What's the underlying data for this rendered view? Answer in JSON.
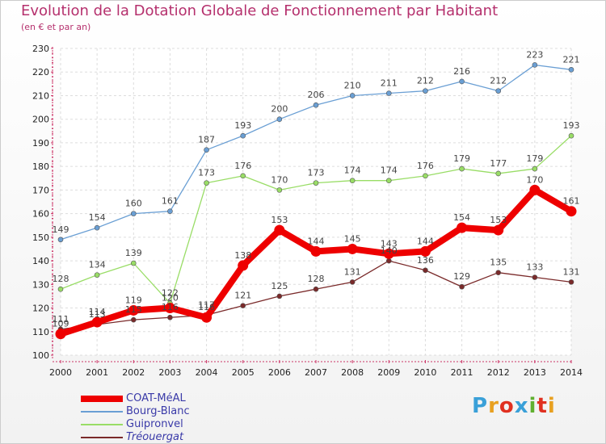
{
  "header": {
    "title": "Evolution de la Dotation Globale de Fonctionnement par Habitant",
    "subtitle": "(en € et par an)"
  },
  "logo": {
    "text": "Proxiti",
    "colors": [
      "#3aa0d8",
      "#e8a020",
      "#e03020",
      "#3aa0d8",
      "#60b030",
      "#e03020",
      "#e8a020"
    ]
  },
  "chart_data": {
    "type": "line",
    "x": [
      "2000",
      "2001",
      "2002",
      "2003",
      "2004",
      "2005",
      "2006",
      "2007",
      "2008",
      "2009",
      "2010",
      "2011",
      "2012",
      "2013",
      "2014"
    ],
    "ylim": [
      100,
      230
    ],
    "yticks": [
      100,
      110,
      120,
      130,
      140,
      150,
      160,
      170,
      180,
      190,
      200,
      210,
      220,
      230
    ],
    "grid": true,
    "legend_position": "bottom-left",
    "series": [
      {
        "name": "COAT-MéAL",
        "color": "#ee0000",
        "values": [
          109,
          114,
          119,
          120,
          116,
          138,
          153,
          144,
          145,
          143,
          144,
          154,
          153,
          170,
          161
        ]
      },
      {
        "name": "Bourg-Blanc",
        "color": "#6a9fd4",
        "values": [
          149,
          154,
          160,
          161,
          187,
          193,
          200,
          206,
          210,
          211,
          212,
          216,
          212,
          223,
          221
        ]
      },
      {
        "name": "Guipronvel",
        "color": "#99dd66",
        "values": [
          128,
          134,
          139,
          122,
          173,
          176,
          170,
          173,
          174,
          174,
          176,
          179,
          177,
          179,
          193
        ]
      },
      {
        "name": "Tréouergat",
        "color": "#7a2a2a",
        "values": [
          111,
          113,
          115,
          116,
          117,
          121,
          125,
          128,
          131,
          140,
          136,
          129,
          135,
          133,
          131
        ]
      }
    ]
  }
}
